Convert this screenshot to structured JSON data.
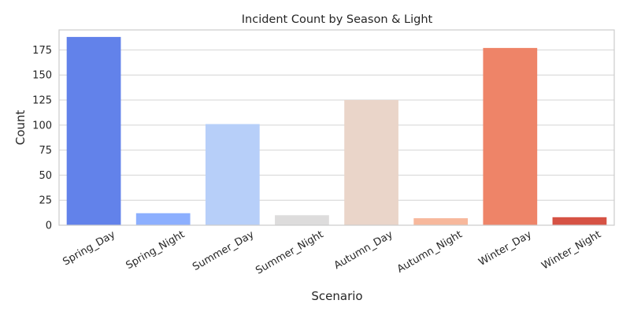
{
  "chart_data": {
    "type": "bar",
    "title": "Incident Count by Season & Light",
    "xlabel": "Scenario",
    "ylabel": "Count",
    "categories": [
      "Spring_Day",
      "Spring_Night",
      "Summer_Day",
      "Summer_Night",
      "Autumn_Day",
      "Autumn_Night",
      "Winter_Day",
      "Winter_Night"
    ],
    "values": [
      188,
      12,
      101,
      10,
      125,
      7,
      177,
      8
    ],
    "colors": [
      "#6282ea",
      "#8caffe",
      "#b7cff9",
      "#dddcdc",
      "#ead5c9",
      "#f7b89c",
      "#ee8468",
      "#d65244"
    ],
    "ylim": [
      0,
      195
    ],
    "yticks": [
      0,
      25,
      50,
      75,
      100,
      125,
      150,
      175
    ],
    "grid": true,
    "legend": "none"
  }
}
